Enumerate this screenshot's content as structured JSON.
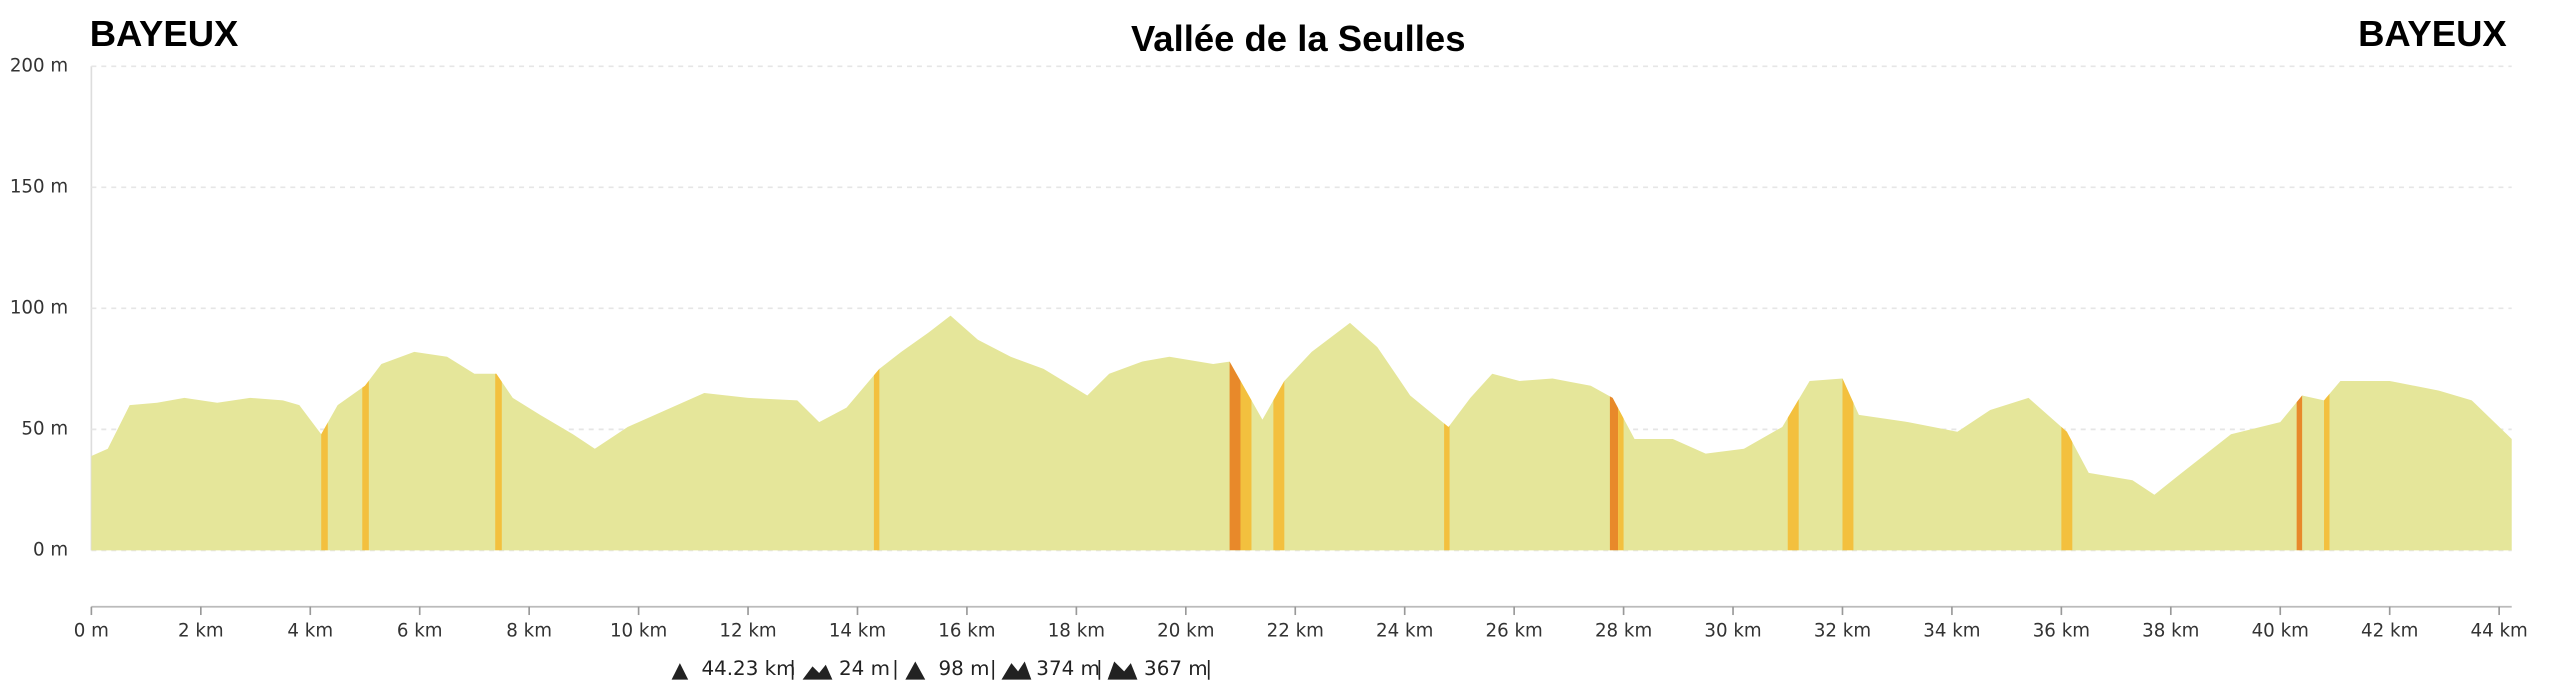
{
  "chart_data": {
    "type": "area",
    "title": "Vallée de la Seulles",
    "start_label": "BAYEUX",
    "end_label": "BAYEUX",
    "x": [
      0,
      0.3,
      0.7,
      1.2,
      1.7,
      2.3,
      2.9,
      3.5,
      3.8,
      4.2,
      4.5,
      5.0,
      5.3,
      5.9,
      6.5,
      7.0,
      7.4,
      7.7,
      8.2,
      8.8,
      9.2,
      9.8,
      10.5,
      11.2,
      12.0,
      12.9,
      13.3,
      13.8,
      14.4,
      14.8,
      15.3,
      15.7,
      16.2,
      16.8,
      17.4,
      18.2,
      18.6,
      19.2,
      19.7,
      20.5,
      20.8,
      21.1,
      21.4,
      21.8,
      22.3,
      23.0,
      23.5,
      24.1,
      24.8,
      25.2,
      25.6,
      26.1,
      26.7,
      27.4,
      27.8,
      28.2,
      28.9,
      29.5,
      30.2,
      30.9,
      31.4,
      32.0,
      32.3,
      33.2,
      34.1,
      34.7,
      35.4,
      36.1,
      36.5,
      37.3,
      37.7,
      38.2,
      39.1,
      40.0,
      40.4,
      40.8,
      41.1,
      42.0,
      42.9,
      43.5,
      44.23
    ],
    "series": [
      {
        "color": "#e5e69a",
        "values": [
          39,
          42,
          60,
          61,
          63,
          61,
          63,
          62,
          60,
          48,
          60,
          68,
          77,
          82,
          80,
          73,
          73,
          63,
          56,
          48,
          42,
          51,
          58,
          65,
          63,
          62,
          53,
          59,
          75,
          82,
          90,
          97,
          87,
          80,
          75,
          64,
          73,
          78,
          80,
          77,
          78,
          66,
          54,
          70,
          82,
          94,
          84,
          64,
          51,
          63,
          73,
          70,
          71,
          68,
          63,
          46,
          46,
          40,
          42,
          51,
          70,
          71,
          56,
          53,
          49,
          58,
          63,
          49,
          32,
          29,
          23,
          32,
          48,
          53,
          64,
          62,
          70,
          70,
          66,
          62,
          46
        ]
      }
    ],
    "steep_sections": [
      {
        "x": [
          4.2,
          4.32
        ],
        "color": "#f3c03e"
      },
      {
        "x": [
          4.95,
          5.07
        ],
        "color": "#f3c03e"
      },
      {
        "x": [
          7.38,
          7.5
        ],
        "color": "#f3c03e"
      },
      {
        "x": [
          14.3,
          14.4
        ],
        "color": "#f3c03e"
      },
      {
        "x": [
          20.8,
          21.0
        ],
        "color": "#e8892a"
      },
      {
        "x": [
          21.0,
          21.2
        ],
        "color": "#f3c03e"
      },
      {
        "x": [
          21.6,
          21.8
        ],
        "color": "#f3c03e"
      },
      {
        "x": [
          24.72,
          24.82
        ],
        "color": "#f3c03e"
      },
      {
        "x": [
          27.75,
          27.9
        ],
        "color": "#e8892a"
      },
      {
        "x": [
          27.9,
          28.0
        ],
        "color": "#f3c03e"
      },
      {
        "x": [
          31.0,
          31.2
        ],
        "color": "#f3c03e"
      },
      {
        "x": [
          32.0,
          32.2
        ],
        "color": "#f3c03e"
      },
      {
        "x": [
          36.0,
          36.2
        ],
        "color": "#f3c03e"
      },
      {
        "x": [
          40.3,
          40.4
        ],
        "color": "#e8892a"
      },
      {
        "x": [
          40.8,
          40.9
        ],
        "color": "#f3c03e"
      }
    ],
    "xlim": [
      0,
      44.23
    ],
    "ylim": [
      0,
      200
    ],
    "xticks": [
      {
        "value": 0,
        "label": "0 m"
      },
      {
        "value": 2,
        "label": "2 km"
      },
      {
        "value": 4,
        "label": "4 km"
      },
      {
        "value": 6,
        "label": "6 km"
      },
      {
        "value": 8,
        "label": "8 km"
      },
      {
        "value": 10,
        "label": "10 km"
      },
      {
        "value": 12,
        "label": "12 km"
      },
      {
        "value": 14,
        "label": "14 km"
      },
      {
        "value": 16,
        "label": "16 km"
      },
      {
        "value": 18,
        "label": "18 km"
      },
      {
        "value": 20,
        "label": "20 km"
      },
      {
        "value": 22,
        "label": "22 km"
      },
      {
        "value": 24,
        "label": "24 km"
      },
      {
        "value": 26,
        "label": "26 km"
      },
      {
        "value": 28,
        "label": "28 km"
      },
      {
        "value": 30,
        "label": "30 km"
      },
      {
        "value": 32,
        "label": "32 km"
      },
      {
        "value": 34,
        "label": "34 km"
      },
      {
        "value": 36,
        "label": "36 km"
      },
      {
        "value": 38,
        "label": "38 km"
      },
      {
        "value": 40,
        "label": "40 km"
      },
      {
        "value": 42,
        "label": "42 km"
      },
      {
        "value": 44,
        "label": "44 km"
      }
    ],
    "yticks": [
      {
        "value": 0,
        "label": "0 m"
      },
      {
        "value": 50,
        "label": "50 m"
      },
      {
        "value": 100,
        "label": "100 m"
      },
      {
        "value": 150,
        "label": "150 m"
      },
      {
        "value": 200,
        "label": "200 m"
      }
    ],
    "grid": true,
    "stats": [
      "44.23 km",
      "24 m",
      "98 m",
      "374 m",
      "367 m"
    ]
  }
}
